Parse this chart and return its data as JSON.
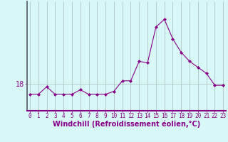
{
  "hours": [
    0,
    1,
    2,
    3,
    4,
    5,
    6,
    7,
    8,
    9,
    10,
    11,
    12,
    13,
    14,
    15,
    16,
    17,
    18,
    19,
    20,
    21,
    22,
    23
  ],
  "values": [
    17.3,
    17.3,
    17.8,
    17.3,
    17.3,
    17.3,
    17.6,
    17.3,
    17.3,
    17.3,
    17.5,
    18.2,
    18.2,
    19.5,
    19.4,
    21.8,
    22.3,
    21.0,
    20.1,
    19.5,
    19.1,
    18.7,
    17.9,
    17.9
  ],
  "line_color": "#880088",
  "marker": "D",
  "marker_size": 2.0,
  "line_width": 0.8,
  "bg_color": "#d8f8f8",
  "plot_bg_color": "#d8f8f8",
  "grid_color": "#aabbbb",
  "ytick_value": 18,
  "xlabel": "Windchill (Refroidissement éolien,°C)",
  "xlabel_fontsize": 7,
  "tick_color": "#880088",
  "tick_fontsize": 5.5,
  "ytick_fontsize": 7,
  "ylim": [
    16.2,
    23.5
  ],
  "xlim": [
    -0.3,
    23.3
  ]
}
